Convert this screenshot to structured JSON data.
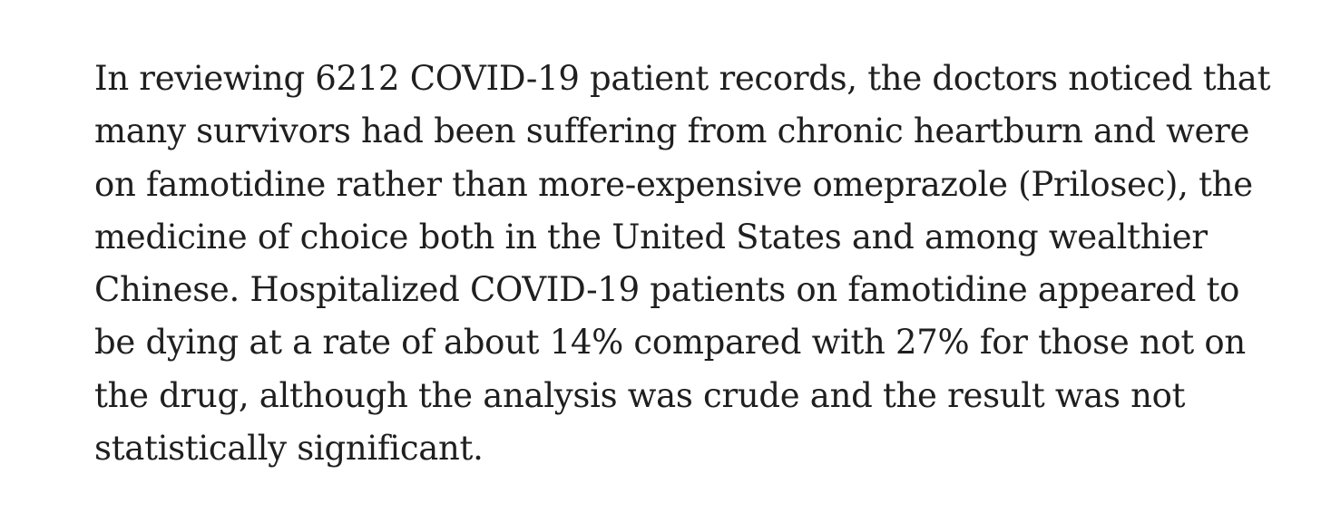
{
  "article": {
    "paragraph_lines": [
      "In reviewing 6212 COVID-19 patient records, the doctors noticed that",
      "many survivors had been suffering from chronic heartburn and were",
      "on famotidine rather than more-expensive omeprazole (Prilosec), the",
      "medicine of choice both in the United States and among wealthier",
      "Chinese. Hospitalized COVID-19 patients on famotidine appeared to",
      "be dying at a rate of about 14% compared with 27% for those not on",
      "the drug, although the analysis was crude and the result was not",
      "statistically significant."
    ]
  }
}
